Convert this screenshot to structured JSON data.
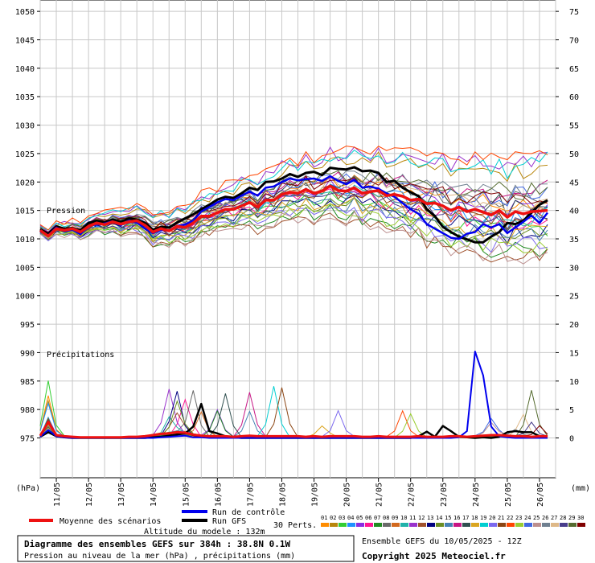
{
  "chart_data": {
    "type": "line",
    "left_axis": {
      "unit_label": "(hPa)",
      "ticks": [
        1050,
        1045,
        1040,
        1035,
        1030,
        1025,
        1020,
        1015,
        1010,
        1005,
        1000,
        995,
        990,
        985,
        980,
        975
      ],
      "range": [
        968,
        1052
      ]
    },
    "right_axis": {
      "unit_label": "(mm)",
      "ticks": [
        75,
        70,
        65,
        60,
        55,
        50,
        45,
        40,
        35,
        30,
        25,
        20,
        15,
        10,
        5,
        0
      ],
      "range": [
        -7,
        77
      ]
    },
    "x_axis": {
      "categories": [
        "11/05",
        "12/05",
        "13/05",
        "14/05",
        "15/05",
        "16/05",
        "17/05",
        "18/05",
        "19/05",
        "20/05",
        "21/05",
        "22/05",
        "23/05",
        "24/05",
        "25/05",
        "26/05"
      ],
      "step_hours": 6,
      "total_steps": 64
    },
    "grid": true,
    "section_labels": {
      "pressure": "Pression",
      "precip": "Précipitations"
    },
    "mean_pressure": [
      1011.5,
      1010.5,
      1011.8,
      1011.5,
      1011.8,
      1011.2,
      1012.2,
      1012.8,
      1012.5,
      1013.0,
      1012.6,
      1013.0,
      1013.2,
      1012.4,
      1011.2,
      1011.8,
      1011.4,
      1012.2,
      1012.0,
      1012.8,
      1014.0,
      1014.0,
      1014.6,
      1015.2,
      1015.2,
      1015.8,
      1016.4,
      1015.6,
      1016.8,
      1016.8,
      1017.8,
      1018.2,
      1018.0,
      1018.7,
      1018.0,
      1018.4,
      1019.3,
      1018.5,
      1018.4,
      1019.0,
      1018.0,
      1018.3,
      1018.5,
      1017.6,
      1017.8,
      1017.5,
      1016.8,
      1017.0,
      1016.2,
      1016.3,
      1015.8,
      1015.0,
      1015.6,
      1014.8,
      1015.2,
      1014.7,
      1014.2,
      1015.0,
      1013.8,
      1014.8,
      1014.4,
      1014.8,
      1014.9,
      1015.0
    ],
    "control_pressure": [
      1011.3,
      1010.6,
      1012.0,
      1011.3,
      1011.6,
      1010.8,
      1012.3,
      1012.5,
      1012.7,
      1013.1,
      1012.4,
      1013.2,
      1012.9,
      1011.8,
      1011.0,
      1011.6,
      1011.5,
      1012.3,
      1012.5,
      1013.2,
      1014.8,
      1015.6,
      1016.4,
      1017.0,
      1016.8,
      1017.6,
      1018.3,
      1017.6,
      1019.0,
      1019.2,
      1020.0,
      1020.6,
      1020.3,
      1020.5,
      1020.6,
      1020.2,
      1021.0,
      1020.2,
      1019.6,
      1020.4,
      1019.0,
      1019.2,
      1018.8,
      1018.0,
      1017.4,
      1016.3,
      1015.2,
      1014.4,
      1012.6,
      1011.8,
      1011.0,
      1010.2,
      1010.0,
      1010.9,
      1011.2,
      1012.6,
      1012.0,
      1012.6,
      1011.0,
      1012.0,
      1013.0,
      1014.1,
      1012.8,
      1014.6
    ],
    "gfs_pressure": [
      1011.7,
      1010.9,
      1012.2,
      1011.8,
      1011.9,
      1011.5,
      1012.8,
      1013.2,
      1012.9,
      1013.4,
      1013.0,
      1013.6,
      1013.4,
      1012.8,
      1011.6,
      1012.1,
      1012.0,
      1012.9,
      1013.6,
      1014.3,
      1015.2,
      1016.0,
      1016.9,
      1017.4,
      1017.2,
      1018.0,
      1019.0,
      1018.6,
      1020.0,
      1020.1,
      1020.6,
      1021.4,
      1020.9,
      1021.6,
      1021.8,
      1021.2,
      1022.5,
      1022.3,
      1022.2,
      1022.6,
      1021.9,
      1022.0,
      1021.6,
      1020.0,
      1020.2,
      1019.0,
      1018.2,
      1017.5,
      1015.2,
      1014.0,
      1012.1,
      1011.2,
      1010.4,
      1009.9,
      1009.4,
      1009.4,
      1010.4,
      1011.2,
      1012.8,
      1012.6,
      1013.2,
      1014.6,
      1016.0,
      1016.8
    ],
    "mean_precip": [
      0.4,
      2.8,
      0.5,
      0.3,
      0.2,
      0.1,
      0.1,
      0.1,
      0.1,
      0.1,
      0.1,
      0.2,
      0.2,
      0.3,
      0.5,
      0.7,
      0.8,
      1.0,
      0.9,
      0.6,
      0.4,
      0.3,
      0.3,
      0.3,
      0.2,
      0.3,
      0.4,
      0.3,
      0.3,
      0.3,
      0.3,
      0.3,
      0.3,
      0.2,
      0.3,
      0.2,
      0.3,
      0.3,
      0.3,
      0.3,
      0.2,
      0.2,
      0.3,
      0.2,
      0.2,
      0.2,
      0.2,
      0.3,
      0.2,
      0.2,
      0.2,
      0.3,
      0.3,
      0.2,
      0.3,
      0.4,
      0.5,
      0.5,
      0.4,
      0.3,
      0.3,
      0.2,
      0.3,
      0.3
    ],
    "control_precip": [
      0.2,
      1.4,
      0.3,
      0.1,
      0.0,
      0.0,
      0.0,
      0.0,
      0.0,
      0.0,
      0.0,
      0.0,
      0.0,
      0.0,
      0.0,
      0.1,
      0.2,
      0.3,
      0.4,
      0.1,
      0.1,
      0.0,
      0.0,
      0.0,
      0.0,
      0.0,
      0.0,
      0.0,
      0.0,
      0.0,
      0.0,
      0.0,
      0.0,
      0.0,
      0.0,
      0.0,
      0.0,
      0.0,
      0.0,
      0.0,
      0.0,
      0.0,
      0.0,
      0.0,
      0.0,
      0.0,
      0.0,
      0.0,
      0.0,
      0.0,
      0.0,
      0.0,
      0.1,
      1.2,
      15.2,
      11.0,
      2.0,
      0.3,
      0.1,
      0.0,
      0.0,
      0.0,
      0.0,
      0.0
    ],
    "gfs_precip": [
      0.2,
      1.0,
      0.3,
      0.1,
      0.0,
      0.0,
      0.0,
      0.0,
      0.0,
      0.0,
      0.0,
      0.0,
      0.0,
      0.0,
      0.1,
      0.2,
      0.4,
      0.6,
      0.8,
      2.0,
      6.0,
      1.2,
      0.8,
      0.3,
      0.1,
      0.0,
      0.0,
      0.0,
      0.0,
      0.0,
      0.0,
      0.0,
      0.0,
      0.0,
      0.0,
      0.0,
      0.0,
      0.0,
      0.0,
      0.0,
      0.0,
      0.0,
      0.0,
      0.0,
      0.0,
      0.0,
      0.0,
      0.3,
      1.1,
      0.2,
      2.1,
      1.2,
      0.2,
      0.1,
      0.0,
      0.1,
      0.0,
      0.2,
      1.0,
      1.2,
      1.0,
      1.0,
      0.3,
      0.1
    ],
    "perturbation_colors": [
      "#ff8c00",
      "#b8860b",
      "#32cd32",
      "#1e90ff",
      "#8a2be2",
      "#ff1493",
      "#228b22",
      "#696969",
      "#d2691e",
      "#20b2aa",
      "#9932cc",
      "#a0522d",
      "#000080",
      "#6b8e23",
      "#4682b4",
      "#c71585",
      "#2f4f4f",
      "#daa520",
      "#00ced1",
      "#7b68ee",
      "#8b4513",
      "#ff4500",
      "#9acd32",
      "#4169e1",
      "#bc8f8f",
      "#708090",
      "#deb887",
      "#483d8b",
      "#556b2f",
      "#800000"
    ]
  },
  "legend": {
    "mean_label": "Moyenne des scénarios",
    "control_label": "Run de contrôle",
    "gfs_label": "Run GFS",
    "perts_label": "30 Perts.",
    "pert_numbers": [
      "01",
      "02",
      "03",
      "04",
      "05",
      "06",
      "07",
      "08",
      "09",
      "10",
      "11",
      "12",
      "13",
      "14",
      "15",
      "16",
      "17",
      "18",
      "19",
      "20",
      "21",
      "22",
      "23",
      "24",
      "25",
      "26",
      "27",
      "28",
      "29",
      "30"
    ],
    "mean_color": "#ee1111",
    "control_color": "#0000ee",
    "gfs_color": "#000000"
  },
  "footer": {
    "altitude": "Altitude du modele : 132m",
    "title": "Diagramme des ensembles GEFS sur 384h : 38.8N 0.1W",
    "subtitle": "Pression au niveau de la mer (hPa) , précipitations (mm)",
    "run": "Ensemble GEFS du 10/05/2025 - 12Z",
    "copyright": "Copyright 2025 Meteociel.fr"
  }
}
